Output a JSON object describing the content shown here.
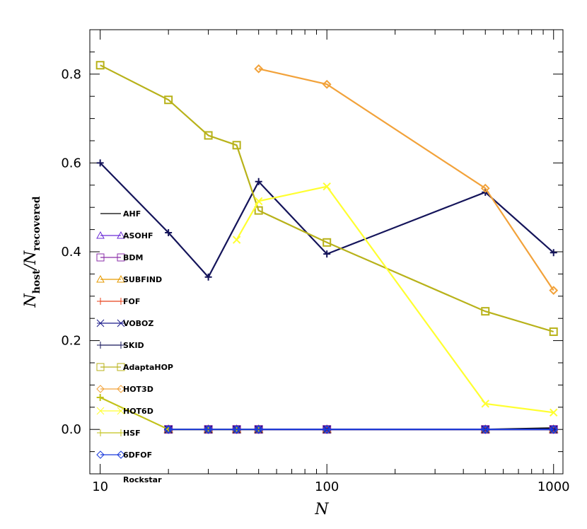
{
  "chart_data": {
    "type": "line",
    "title": "",
    "xlabel": "N",
    "ylabel_main": "N",
    "ylabel_sub_top": "host",
    "ylabel_slash": "/",
    "ylabel_sub_bottom": "recovered",
    "xscale": "log",
    "xlim": [
      9,
      1100
    ],
    "ylim": [
      -0.1,
      0.9
    ],
    "x_ticks": [
      10,
      100,
      1000
    ],
    "x_tick_labels": [
      "10",
      "100",
      "1000"
    ],
    "y_ticks": [
      0.0,
      0.2,
      0.4,
      0.6,
      0.8
    ],
    "y_tick_labels": [
      "0.0",
      "0.2",
      "0.4",
      "0.6",
      "0.8"
    ],
    "legend_position": "left",
    "series": [
      {
        "name": "AHF",
        "color": "#000000",
        "marker": "none",
        "x": [
          20,
          30,
          40,
          50,
          100,
          500,
          1000
        ],
        "y": [
          0,
          0,
          0,
          0,
          0,
          0,
          0.003
        ]
      },
      {
        "name": "ASOHF",
        "color": "#6a2bd6",
        "marker": "triangle",
        "x": [
          20,
          30,
          40,
          50,
          100,
          500,
          1000
        ],
        "y": [
          0,
          0,
          0,
          0,
          0,
          0,
          0
        ]
      },
      {
        "name": "BDM",
        "color": "#8a2ea8",
        "marker": "square",
        "x": [
          20,
          30,
          40,
          50,
          100,
          500,
          1000
        ],
        "y": [
          0,
          0,
          0,
          0,
          0,
          0,
          0
        ]
      },
      {
        "name": "SUBFIND",
        "color": "#e69a00",
        "marker": "triangle",
        "x": [
          20,
          30,
          40,
          50,
          100,
          500,
          1000
        ],
        "y": [
          0,
          0,
          0,
          0,
          0,
          0,
          0
        ]
      },
      {
        "name": "FOF",
        "color": "#e8401a",
        "marker": "plus",
        "x": [
          20,
          30,
          40,
          50,
          100,
          500,
          1000
        ],
        "y": [
          0,
          0,
          0,
          0,
          0,
          0,
          0
        ]
      },
      {
        "name": "VOBOZ",
        "color": "#1a1a8a",
        "marker": "asterisk",
        "x": [
          20,
          30,
          40,
          50,
          100,
          500,
          1000
        ],
        "y": [
          0,
          0,
          0,
          0,
          0,
          0,
          0
        ]
      },
      {
        "name": "SKID",
        "color": "#14145a",
        "marker": "plus",
        "x": [
          10,
          20,
          30,
          50,
          100,
          500,
          1000
        ],
        "y": [
          0.6,
          0.443,
          0.343,
          0.558,
          0.395,
          0.534,
          0.398
        ]
      },
      {
        "name": "AdaptaHOP",
        "color": "#b8b21a",
        "marker": "square",
        "x": [
          10,
          20,
          30,
          40,
          50,
          100,
          500,
          1000
        ],
        "y": [
          0.82,
          0.742,
          0.662,
          0.64,
          0.493,
          0.421,
          0.266,
          0.22
        ]
      },
      {
        "name": "HOT3D",
        "color": "#f2a23a",
        "marker": "diamond",
        "x": [
          50,
          100,
          500,
          1000
        ],
        "y": [
          0.812,
          0.777,
          0.543,
          0.313
        ]
      },
      {
        "name": "HOT6D",
        "color": "#ffff30",
        "marker": "x",
        "x": [
          40,
          50,
          100,
          500,
          1000
        ],
        "y": [
          0.427,
          0.514,
          0.547,
          0.058,
          0.038
        ]
      },
      {
        "name": "HSF",
        "color": "#c2c21a",
        "marker": "plus",
        "x": [
          10,
          20,
          30,
          40,
          50
        ],
        "y": [
          0.072,
          0,
          0,
          0,
          0
        ]
      },
      {
        "name": "6DFOF",
        "color": "#1a3adc",
        "marker": "diamond",
        "x": [
          20,
          30,
          40,
          50,
          100,
          500,
          1000
        ],
        "y": [
          0,
          0,
          0,
          0,
          0,
          0,
          0
        ]
      },
      {
        "name": "Rockstar",
        "color": "#000000",
        "marker": "none",
        "x": [],
        "y": []
      }
    ]
  }
}
